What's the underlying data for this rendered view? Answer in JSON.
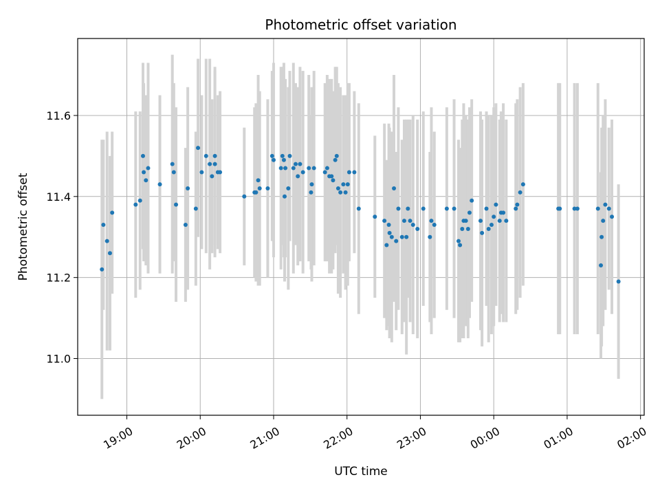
{
  "chart_data": {
    "type": "scatter",
    "title": "Photometric offset variation",
    "xlabel": "UTC time",
    "ylabel": "Photometric offset",
    "x_tick_labels": [
      "19:00",
      "20:00",
      "21:00",
      "22:00",
      "23:00",
      "00:00",
      "01:00",
      "02:00"
    ],
    "x_ticks_hours": [
      19,
      20,
      21,
      22,
      23,
      24,
      25,
      26
    ],
    "y_ticks": [
      11.0,
      11.2,
      11.4,
      11.6
    ],
    "y_tick_labels": [
      "11.0",
      "11.2",
      "11.4",
      "11.6"
    ],
    "xlim_hours": [
      18.33,
      26.05
    ],
    "ylim": [
      10.86,
      11.79
    ],
    "grid": true,
    "point_color": "#1f77b4",
    "errorbar_color": "#d3d3d3",
    "points": [
      {
        "t": 18.66,
        "y": 11.22,
        "e": 0.32
      },
      {
        "t": 18.68,
        "y": 11.33,
        "e": 0.21
      },
      {
        "t": 18.73,
        "y": 11.29,
        "e": 0.27
      },
      {
        "t": 18.77,
        "y": 11.26,
        "e": 0.24
      },
      {
        "t": 18.8,
        "y": 11.36,
        "e": 0.2
      },
      {
        "t": 19.12,
        "y": 11.38,
        "e": 0.23
      },
      {
        "t": 19.18,
        "y": 11.39,
        "e": 0.22
      },
      {
        "t": 19.22,
        "y": 11.5,
        "e": 0.23
      },
      {
        "t": 19.23,
        "y": 11.46,
        "e": 0.22
      },
      {
        "t": 19.26,
        "y": 11.44,
        "e": 0.21
      },
      {
        "t": 19.29,
        "y": 11.47,
        "e": 0.26
      },
      {
        "t": 19.45,
        "y": 11.43,
        "e": 0.22
      },
      {
        "t": 19.62,
        "y": 11.48,
        "e": 0.27
      },
      {
        "t": 19.64,
        "y": 11.46,
        "e": 0.22
      },
      {
        "t": 19.67,
        "y": 11.38,
        "e": 0.24
      },
      {
        "t": 19.8,
        "y": 11.33,
        "e": 0.19
      },
      {
        "t": 19.83,
        "y": 11.42,
        "e": 0.25
      },
      {
        "t": 19.94,
        "y": 11.37,
        "e": 0.19
      },
      {
        "t": 19.97,
        "y": 11.52,
        "e": 0.22
      },
      {
        "t": 20.02,
        "y": 11.46,
        "e": 0.19
      },
      {
        "t": 20.08,
        "y": 11.5,
        "e": 0.24
      },
      {
        "t": 20.13,
        "y": 11.48,
        "e": 0.26
      },
      {
        "t": 20.16,
        "y": 11.45,
        "e": 0.19
      },
      {
        "t": 20.2,
        "y": 11.5,
        "e": 0.22
      },
      {
        "t": 20.2,
        "y": 11.48,
        "e": 0.23
      },
      {
        "t": 20.24,
        "y": 11.46,
        "e": 0.19
      },
      {
        "t": 20.27,
        "y": 11.46,
        "e": 0.2
      },
      {
        "t": 20.6,
        "y": 11.4,
        "e": 0.17
      },
      {
        "t": 20.74,
        "y": 11.41,
        "e": 0.21
      },
      {
        "t": 20.76,
        "y": 11.41,
        "e": 0.22
      },
      {
        "t": 20.79,
        "y": 11.44,
        "e": 0.26
      },
      {
        "t": 20.81,
        "y": 11.42,
        "e": 0.24
      },
      {
        "t": 20.92,
        "y": 11.42,
        "e": 0.22
      },
      {
        "t": 20.98,
        "y": 11.5,
        "e": 0.21
      },
      {
        "t": 21.0,
        "y": 11.49,
        "e": 0.24
      },
      {
        "t": 21.1,
        "y": 11.47,
        "e": 0.25
      },
      {
        "t": 21.12,
        "y": 11.5,
        "e": 0.22
      },
      {
        "t": 21.14,
        "y": 11.49,
        "e": 0.24
      },
      {
        "t": 21.15,
        "y": 11.4,
        "e": 0.21
      },
      {
        "t": 21.16,
        "y": 11.47,
        "e": 0.22
      },
      {
        "t": 21.2,
        "y": 11.42,
        "e": 0.25
      },
      {
        "t": 21.22,
        "y": 11.5,
        "e": 0.21
      },
      {
        "t": 21.27,
        "y": 11.47,
        "e": 0.26
      },
      {
        "t": 21.3,
        "y": 11.48,
        "e": 0.2
      },
      {
        "t": 21.33,
        "y": 11.45,
        "e": 0.22
      },
      {
        "t": 21.36,
        "y": 11.48,
        "e": 0.24
      },
      {
        "t": 21.4,
        "y": 11.46,
        "e": 0.25
      },
      {
        "t": 21.48,
        "y": 11.47,
        "e": 0.23
      },
      {
        "t": 21.51,
        "y": 11.41,
        "e": 0.19
      },
      {
        "t": 21.52,
        "y": 11.43,
        "e": 0.24
      },
      {
        "t": 21.55,
        "y": 11.47,
        "e": 0.24
      },
      {
        "t": 21.7,
        "y": 11.46,
        "e": 0.22
      },
      {
        "t": 21.73,
        "y": 11.47,
        "e": 0.23
      },
      {
        "t": 21.76,
        "y": 11.45,
        "e": 0.24
      },
      {
        "t": 21.79,
        "y": 11.45,
        "e": 0.24
      },
      {
        "t": 21.81,
        "y": 11.44,
        "e": 0.22
      },
      {
        "t": 21.84,
        "y": 11.49,
        "e": 0.23
      },
      {
        "t": 21.86,
        "y": 11.5,
        "e": 0.22
      },
      {
        "t": 21.88,
        "y": 11.42,
        "e": 0.26
      },
      {
        "t": 21.91,
        "y": 11.41,
        "e": 0.26
      },
      {
        "t": 21.95,
        "y": 11.43,
        "e": 0.22
      },
      {
        "t": 21.98,
        "y": 11.41,
        "e": 0.24
      },
      {
        "t": 22.01,
        "y": 11.43,
        "e": 0.25
      },
      {
        "t": 22.03,
        "y": 11.46,
        "e": 0.22
      },
      {
        "t": 22.1,
        "y": 11.46,
        "e": 0.2
      },
      {
        "t": 22.16,
        "y": 11.37,
        "e": 0.26
      },
      {
        "t": 22.38,
        "y": 11.35,
        "e": 0.2
      },
      {
        "t": 22.51,
        "y": 11.34,
        "e": 0.24
      },
      {
        "t": 22.54,
        "y": 11.28,
        "e": 0.21
      },
      {
        "t": 22.57,
        "y": 11.33,
        "e": 0.25
      },
      {
        "t": 22.58,
        "y": 11.31,
        "e": 0.26
      },
      {
        "t": 22.61,
        "y": 11.3,
        "e": 0.26
      },
      {
        "t": 22.64,
        "y": 11.42,
        "e": 0.28
      },
      {
        "t": 22.67,
        "y": 11.29,
        "e": 0.22
      },
      {
        "t": 22.7,
        "y": 11.37,
        "e": 0.25
      },
      {
        "t": 22.75,
        "y": 11.3,
        "e": 0.24
      },
      {
        "t": 22.78,
        "y": 11.34,
        "e": 0.25
      },
      {
        "t": 22.81,
        "y": 11.3,
        "e": 0.29
      },
      {
        "t": 22.83,
        "y": 11.37,
        "e": 0.22
      },
      {
        "t": 22.86,
        "y": 11.34,
        "e": 0.25
      },
      {
        "t": 22.9,
        "y": 11.33,
        "e": 0.27
      },
      {
        "t": 22.96,
        "y": 11.32,
        "e": 0.27
      },
      {
        "t": 23.04,
        "y": 11.37,
        "e": 0.24
      },
      {
        "t": 23.13,
        "y": 11.3,
        "e": 0.21
      },
      {
        "t": 23.15,
        "y": 11.34,
        "e": 0.28
      },
      {
        "t": 23.19,
        "y": 11.33,
        "e": 0.23
      },
      {
        "t": 23.36,
        "y": 11.37,
        "e": 0.25
      },
      {
        "t": 23.46,
        "y": 11.37,
        "e": 0.27
      },
      {
        "t": 23.52,
        "y": 11.29,
        "e": 0.25
      },
      {
        "t": 23.54,
        "y": 11.28,
        "e": 0.24
      },
      {
        "t": 23.57,
        "y": 11.32,
        "e": 0.27
      },
      {
        "t": 23.59,
        "y": 11.34,
        "e": 0.29
      },
      {
        "t": 23.62,
        "y": 11.34,
        "e": 0.26
      },
      {
        "t": 23.65,
        "y": 11.32,
        "e": 0.27
      },
      {
        "t": 23.67,
        "y": 11.36,
        "e": 0.26
      },
      {
        "t": 23.7,
        "y": 11.39,
        "e": 0.25
      },
      {
        "t": 23.82,
        "y": 11.34,
        "e": 0.27
      },
      {
        "t": 23.84,
        "y": 11.31,
        "e": 0.28
      },
      {
        "t": 23.9,
        "y": 11.37,
        "e": 0.24
      },
      {
        "t": 23.93,
        "y": 11.32,
        "e": 0.28
      },
      {
        "t": 23.97,
        "y": 11.33,
        "e": 0.27
      },
      {
        "t": 24.0,
        "y": 11.35,
        "e": 0.27
      },
      {
        "t": 24.03,
        "y": 11.38,
        "e": 0.25
      },
      {
        "t": 24.08,
        "y": 11.34,
        "e": 0.25
      },
      {
        "t": 24.1,
        "y": 11.36,
        "e": 0.25
      },
      {
        "t": 24.13,
        "y": 11.36,
        "e": 0.27
      },
      {
        "t": 24.17,
        "y": 11.34,
        "e": 0.25
      },
      {
        "t": 24.3,
        "y": 11.37,
        "e": 0.26
      },
      {
        "t": 24.32,
        "y": 11.38,
        "e": 0.26
      },
      {
        "t": 24.36,
        "y": 11.41,
        "e": 0.26
      },
      {
        "t": 24.4,
        "y": 11.43,
        "e": 0.25
      },
      {
        "t": 24.88,
        "y": 11.37,
        "e": 0.31
      },
      {
        "t": 24.9,
        "y": 11.37,
        "e": 0.31
      },
      {
        "t": 25.1,
        "y": 11.37,
        "e": 0.31
      },
      {
        "t": 25.14,
        "y": 11.37,
        "e": 0.31
      },
      {
        "t": 25.42,
        "y": 11.37,
        "e": 0.31
      },
      {
        "t": 25.46,
        "y": 11.23,
        "e": 0.23
      },
      {
        "t": 25.47,
        "y": 11.3,
        "e": 0.27
      },
      {
        "t": 25.49,
        "y": 11.34,
        "e": 0.26
      },
      {
        "t": 25.52,
        "y": 11.38,
        "e": 0.26
      },
      {
        "t": 25.57,
        "y": 11.37,
        "e": 0.2
      },
      {
        "t": 25.61,
        "y": 11.35,
        "e": 0.24
      },
      {
        "t": 25.7,
        "y": 11.19,
        "e": 0.24
      }
    ]
  }
}
